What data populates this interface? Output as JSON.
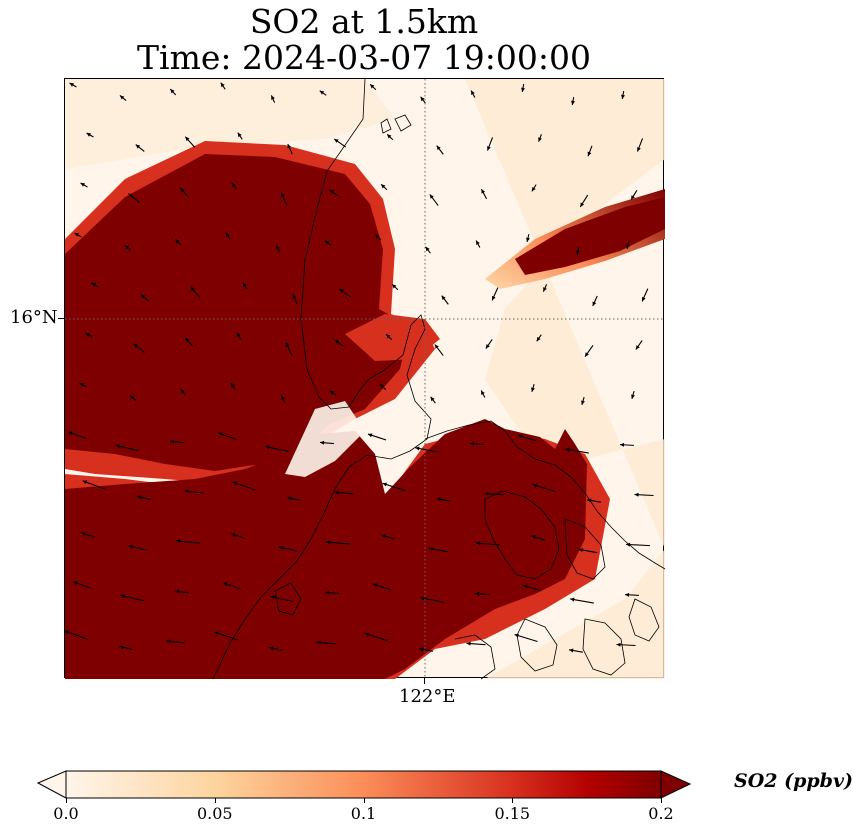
{
  "title": {
    "line1": "SO2 at 1.5km",
    "line2": "Time: 2024-03-07 19:00:00"
  },
  "map": {
    "lat_label": "16°N",
    "lon_label": "122°E",
    "colormap": [
      "#fff5eb",
      "#fdd9a8",
      "#fc8d59",
      "#d7301f",
      "#7f0000"
    ],
    "coastline_color": "#000000",
    "gridline_style": "dotted"
  },
  "colorbar": {
    "label": "SO2 (ppbv)",
    "ticks": [
      "0.0",
      "0.05",
      "0.1",
      "0.15",
      "0.2"
    ],
    "range": [
      0.0,
      0.2
    ],
    "extend": "both"
  }
}
